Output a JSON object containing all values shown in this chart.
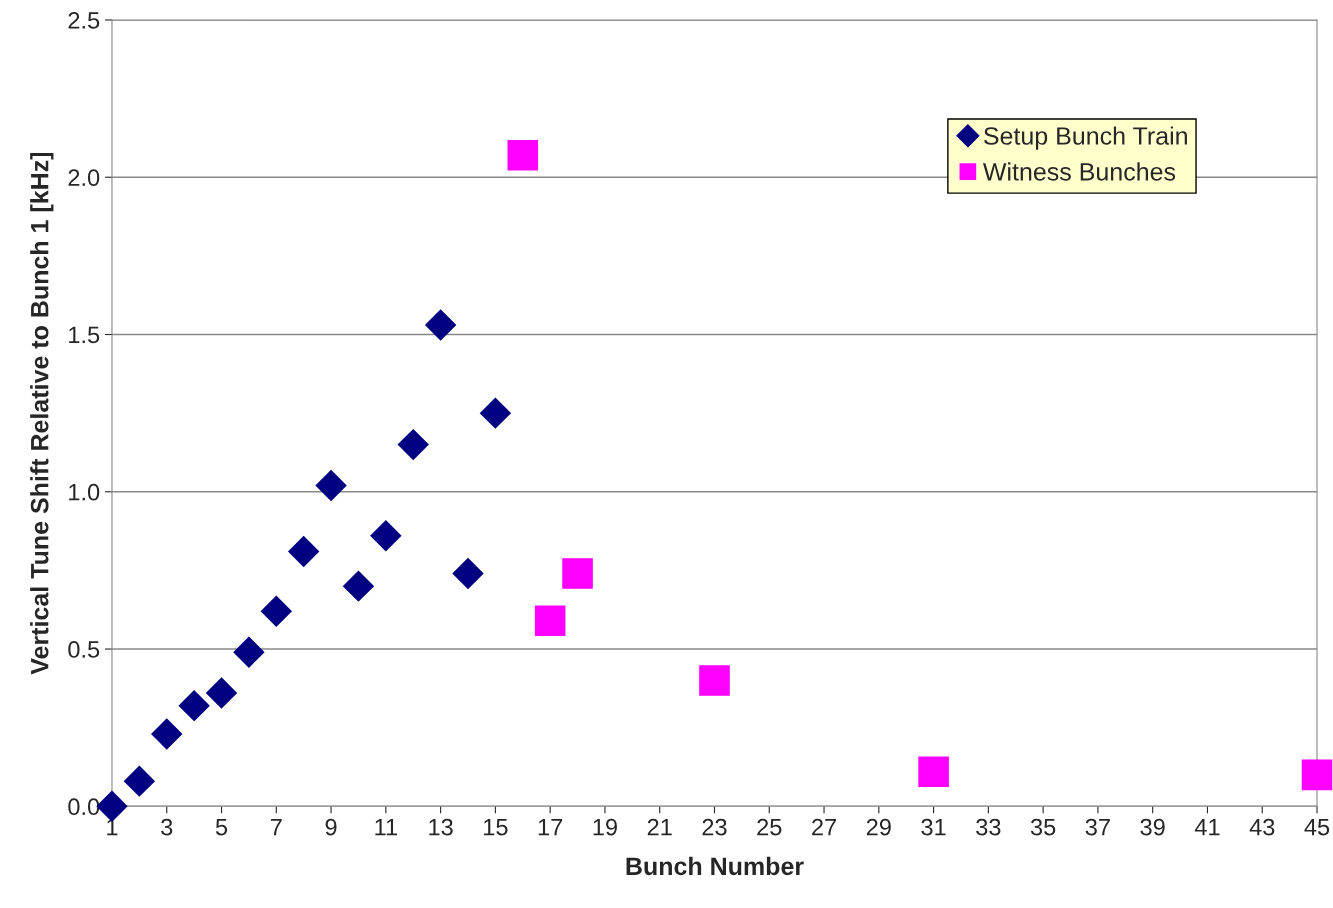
{
  "chart_data": {
    "type": "scatter",
    "xlabel": "Bunch Number",
    "ylabel": "Vertical Tune Shift Relative to Bunch 1 [kHz]",
    "xlim": [
      1,
      45
    ],
    "xticks": [
      1,
      3,
      5,
      7,
      9,
      11,
      13,
      15,
      17,
      19,
      21,
      23,
      25,
      27,
      29,
      31,
      33,
      35,
      37,
      39,
      41,
      43,
      45
    ],
    "ylim": [
      0,
      2.5
    ],
    "yticks": [
      {
        "value": 0,
        "label": "0.0"
      },
      {
        "value": 0.5,
        "label": "0.5"
      },
      {
        "value": 1,
        "label": "1.0"
      },
      {
        "value": 1.5,
        "label": "1.5"
      },
      {
        "value": 2,
        "label": "2.0"
      },
      {
        "value": 2.5,
        "label": "2.5"
      }
    ],
    "grid": "y",
    "legend": "top right",
    "series": [
      {
        "name": "Setup Bunch Train",
        "color": "#000080",
        "marker": "diamond",
        "x": [
          1,
          2,
          3,
          4,
          5,
          6,
          7,
          8,
          9,
          10,
          11,
          12,
          13,
          14,
          15
        ],
        "values": [
          0,
          0.08,
          0.23,
          0.32,
          0.36,
          0.49,
          0.62,
          0.81,
          1.02,
          0.7,
          0.86,
          1.15,
          1.53,
          0.74,
          1.25
        ]
      },
      {
        "name": "Witness Bunches",
        "color": "#ff00ff",
        "marker": "square",
        "x": [
          16,
          17,
          18,
          23,
          31,
          45
        ],
        "values": [
          2.07,
          0.59,
          0.74,
          0.4,
          0.11,
          0.1
        ]
      }
    ]
  }
}
